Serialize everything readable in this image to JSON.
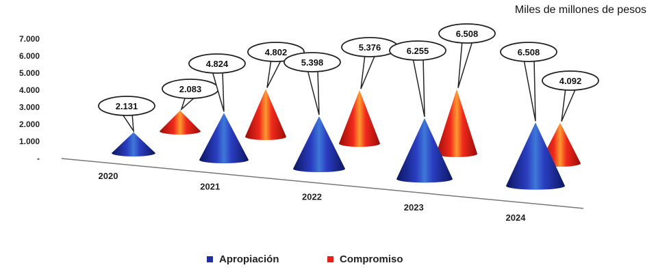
{
  "chart_data": {
    "type": "bar",
    "unit_label": "Miles de millones de pesos",
    "categories": [
      "2020",
      "2021",
      "2022",
      "2023",
      "2024"
    ],
    "series": [
      {
        "name": "Apropiación",
        "values": [
          2131,
          4824,
          5398,
          6255,
          6508
        ],
        "labels": [
          "2.131",
          "4.824",
          "5.398",
          "6.255",
          "6.508"
        ],
        "color": "#1f2f9e"
      },
      {
        "name": "Compromiso",
        "values": [
          2083,
          4802,
          5376,
          6508,
          4092
        ],
        "labels": [
          "2.083",
          "4.802",
          "5.376",
          "6.508",
          "4.092"
        ],
        "color": "#e8201a"
      }
    ],
    "y_ticks": [
      "-",
      "1.000",
      "2.000",
      "3.000",
      "4.000",
      "5.000",
      "6.000",
      "7.000"
    ],
    "ylim": [
      0,
      7000
    ],
    "legend_position": "bottom",
    "grid": false
  }
}
